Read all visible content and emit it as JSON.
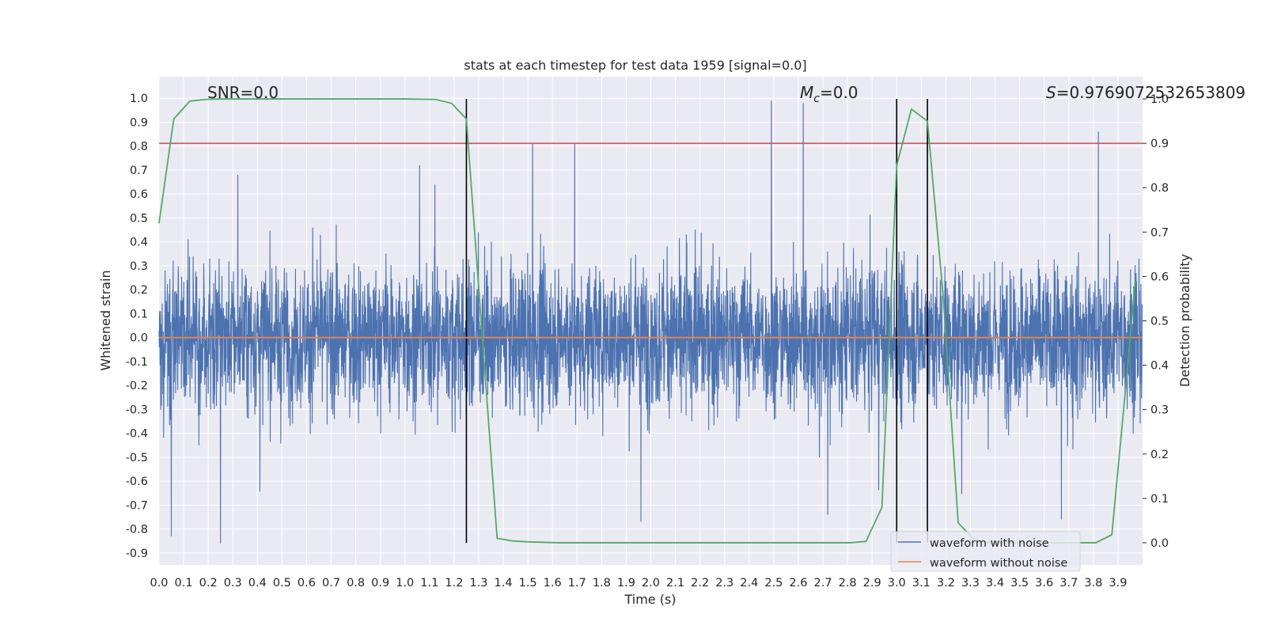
{
  "chart_data": {
    "type": "line",
    "title": "stats at each timestep for test data 1959 [signal=0.0]",
    "xlabel": "Time (s)",
    "ylabel": "Whitened strain",
    "y2label": "Detection probability",
    "xlim": [
      0.0,
      4.0
    ],
    "ylim": [
      -0.95,
      1.09
    ],
    "y2lim": [
      -0.05,
      1.05
    ],
    "x_ticks": [
      "0.0",
      "0.1",
      "0.2",
      "0.3",
      "0.4",
      "0.5",
      "0.6",
      "0.7",
      "0.8",
      "0.9",
      "1.0",
      "1.1",
      "1.2",
      "1.3",
      "1.4",
      "1.5",
      "1.6",
      "1.7",
      "1.8",
      "1.9",
      "2.0",
      "2.1",
      "2.2",
      "2.3",
      "2.4",
      "2.5",
      "2.6",
      "2.7",
      "2.8",
      "2.9",
      "3.0",
      "3.1",
      "3.2",
      "3.3",
      "3.4",
      "3.5",
      "3.6",
      "3.7",
      "3.8",
      "3.9"
    ],
    "y_ticks": [
      "1.0",
      "0.9",
      "0.8",
      "0.7",
      "0.6",
      "0.5",
      "0.4",
      "0.3",
      "0.2",
      "0.1",
      "0.0",
      "-0.1",
      "-0.2",
      "-0.3",
      "-0.4",
      "-0.5",
      "-0.6",
      "-0.7",
      "-0.8",
      "-0.9"
    ],
    "y2_ticks": [
      "1.0",
      "0.9",
      "0.8",
      "0.7",
      "0.6",
      "0.5",
      "0.4",
      "0.3",
      "0.2",
      "0.1",
      "0.0"
    ],
    "grid": true,
    "legend_position": "lower-right",
    "annotations": {
      "snr": "SNR=0.0",
      "mc_symbol": "M",
      "mc_sub": "c",
      "mc_value": "=0.0",
      "s_symbol": "S",
      "s_value": "=0.9769072532653809"
    },
    "series": [
      {
        "name": "waveform with noise",
        "color": "#4c72b0",
        "axis": "left",
        "sample_rate_hz": 1024,
        "envelope_typical": [
          -0.3,
          0.25
        ],
        "notable_peaks": [
          {
            "x": 0.32,
            "y": 0.68
          },
          {
            "x": 1.06,
            "y": 0.72
          },
          {
            "x": 1.52,
            "y": 0.81
          },
          {
            "x": 1.69,
            "y": 0.81
          },
          {
            "x": 2.49,
            "y": 0.99
          },
          {
            "x": 2.62,
            "y": 0.98
          },
          {
            "x": 3.82,
            "y": 0.86
          },
          {
            "x": 0.05,
            "y": -0.83
          },
          {
            "x": 0.25,
            "y": -0.86
          },
          {
            "x": 1.96,
            "y": -0.77
          },
          {
            "x": 2.72,
            "y": -0.74
          },
          {
            "x": 3.67,
            "y": -0.76
          }
        ]
      },
      {
        "name": "waveform without noise",
        "color": "#dd8452",
        "axis": "left",
        "x": [
          0.0,
          4.0
        ],
        "y": [
          0.0,
          0.0
        ]
      },
      {
        "name": "",
        "color": "#55a868",
        "axis": "right",
        "x": [
          0.0,
          0.06,
          0.125,
          0.19,
          0.25,
          0.5,
          0.75,
          1.0,
          1.125,
          1.19,
          1.25,
          1.31,
          1.375,
          1.44,
          1.5,
          1.625,
          1.75,
          2.0,
          2.25,
          2.5,
          2.75,
          2.81,
          2.875,
          2.94,
          3.0,
          3.06,
          3.125,
          3.19,
          3.25,
          3.31,
          3.375,
          3.5,
          3.625,
          3.75,
          3.81,
          3.875,
          3.94,
          3.97
        ],
        "y": [
          0.72,
          0.955,
          0.995,
          0.999,
          1.0,
          1.0,
          1.0,
          1.0,
          0.999,
          0.99,
          0.955,
          0.5,
          0.01,
          0.004,
          0.002,
          0.0,
          0.0,
          0.0,
          0.0,
          0.0,
          0.0,
          0.0,
          0.003,
          0.08,
          0.85,
          0.977,
          0.95,
          0.55,
          0.045,
          0.01,
          0.0,
          0.0,
          0.0,
          0.0,
          0.0,
          0.018,
          0.4,
          0.59
        ]
      }
    ],
    "reference_lines": [
      {
        "orientation": "horizontal",
        "axis": "right",
        "value": 0.9,
        "color": "#c44e52"
      },
      {
        "orientation": "vertical",
        "value": 1.25,
        "y2_range": [
          0.0,
          1.0
        ],
        "color": "#000000"
      },
      {
        "orientation": "vertical",
        "value": 3.0,
        "y2_range": [
          0.0,
          1.0
        ],
        "color": "#000000"
      },
      {
        "orientation": "vertical",
        "value": 3.125,
        "y2_range": [
          0.0,
          1.0
        ],
        "color": "#000000"
      }
    ]
  }
}
